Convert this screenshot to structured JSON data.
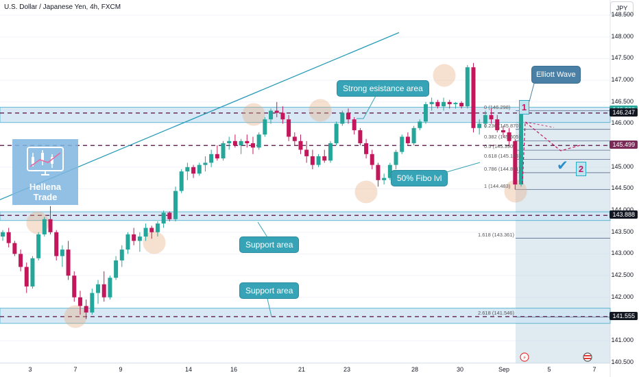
{
  "header": {
    "symbol": "U.S. Dollar / Japanese Yen, 4h, FXCM",
    "currency": "JPY"
  },
  "branding": {
    "line1": "Hellena",
    "line2": "Trade"
  },
  "annotations": {
    "resistance": "Strong esistance area",
    "support1": "Support area",
    "support2": "Support area",
    "fibo50": "50% Fibo lvl",
    "elliott": "Elliott Wave",
    "wave1": "1",
    "wave2": "2"
  },
  "fib_levels": [
    {
      "label": "0 (146.298)",
      "value": 146.298
    },
    {
      "label": "0.236 (145.870)",
      "value": 145.87
    },
    {
      "label": "0.382 (145.605)",
      "value": 145.605
    },
    {
      "label": "0.5 (145.390)",
      "value": 145.39
    },
    {
      "label": "0.618 (145.176)",
      "value": 145.176
    },
    {
      "label": "0.786 (144.871)",
      "value": 144.871
    },
    {
      "label": "1 (144.483)",
      "value": 144.483
    },
    {
      "label": "1.618 (143.361)",
      "value": 143.361
    },
    {
      "label": "2.618 (141.546)",
      "value": 141.546
    }
  ],
  "price_labels": [
    {
      "text": "146.306",
      "value": 146.306,
      "color": "#26a69a"
    },
    {
      "text": "146.247",
      "value": 146.247,
      "color": "#131722"
    },
    {
      "text": "145.499",
      "value": 145.499,
      "color": "#7b2a57"
    },
    {
      "text": "143.888",
      "value": 143.888,
      "color": "#131722"
    },
    {
      "text": "141.555",
      "value": 141.555,
      "color": "#131722"
    }
  ],
  "colors": {
    "up": "#26a69a",
    "down": "#c2185b",
    "zone": "#3ea9c9",
    "dashed": "#6a2c5a",
    "circle": "#e8a87c"
  },
  "chart_data": {
    "type": "candlestick",
    "title": "U.S. Dollar / Japanese Yen, 4h, FXCM",
    "y_ticks": [
      140.5,
      141.0,
      141.5,
      142.0,
      142.5,
      143.0,
      143.5,
      144.0,
      144.5,
      145.0,
      145.5,
      146.0,
      146.5,
      147.0,
      147.5,
      148.0,
      148.5
    ],
    "ylim": [
      140.48,
      148.85
    ],
    "x_ticks": [
      "3",
      "7",
      "9",
      "14",
      "16",
      "21",
      "23",
      "28",
      "30",
      "Sep",
      "5",
      "7"
    ],
    "zones": [
      {
        "name": "resistance",
        "low": 146.03,
        "high": 146.38
      },
      {
        "name": "support-1",
        "low": 143.77,
        "high": 143.97
      },
      {
        "name": "support-2",
        "low": 141.4,
        "high": 141.75
      }
    ],
    "dashed_levels": [
      146.247,
      145.499,
      143.888,
      141.555
    ],
    "trendline": {
      "from": [
        0,
        144.25
      ],
      "to": [
        107,
        148.1
      ]
    },
    "candles": [
      [
        143.4,
        143.55,
        143.3,
        143.5
      ],
      [
        143.5,
        143.6,
        143.15,
        143.25
      ],
      [
        143.25,
        143.3,
        142.95,
        143.0
      ],
      [
        143.0,
        143.1,
        142.6,
        142.7
      ],
      [
        142.7,
        142.8,
        142.1,
        142.25
      ],
      [
        142.25,
        142.95,
        142.2,
        142.9
      ],
      [
        142.9,
        143.5,
        142.85,
        143.45
      ],
      [
        143.45,
        143.85,
        143.4,
        143.8
      ],
      [
        143.8,
        144.1,
        143.45,
        143.5
      ],
      [
        143.5,
        143.55,
        142.85,
        142.95
      ],
      [
        142.95,
        143.2,
        142.7,
        143.1
      ],
      [
        143.1,
        143.3,
        142.4,
        142.5
      ],
      [
        142.5,
        142.6,
        141.9,
        142.0
      ],
      [
        142.0,
        142.15,
        141.6,
        141.8
      ],
      [
        141.8,
        141.95,
        141.5,
        141.65
      ],
      [
        141.65,
        142.2,
        141.6,
        142.1
      ],
      [
        142.1,
        142.4,
        141.85,
        142.3
      ],
      [
        142.3,
        142.6,
        141.9,
        142.0
      ],
      [
        142.0,
        142.5,
        141.95,
        142.45
      ],
      [
        142.45,
        142.95,
        142.4,
        142.85
      ],
      [
        142.85,
        143.2,
        142.7,
        143.1
      ],
      [
        143.1,
        143.5,
        143.0,
        143.45
      ],
      [
        143.45,
        143.6,
        143.2,
        143.3
      ],
      [
        143.3,
        143.5,
        143.05,
        143.4
      ],
      [
        143.4,
        143.7,
        143.3,
        143.6
      ],
      [
        143.6,
        143.65,
        143.35,
        143.5
      ],
      [
        143.5,
        143.75,
        143.4,
        143.7
      ],
      [
        143.7,
        144.0,
        143.6,
        143.95
      ],
      [
        143.95,
        143.98,
        143.75,
        143.8
      ],
      [
        143.8,
        144.55,
        143.75,
        144.45
      ],
      [
        144.45,
        144.95,
        144.4,
        144.9
      ],
      [
        144.9,
        145.1,
        144.7,
        145.0
      ],
      [
        145.0,
        145.05,
        144.75,
        144.85
      ],
      [
        144.85,
        145.1,
        144.8,
        145.05
      ],
      [
        145.05,
        145.25,
        144.9,
        145.1
      ],
      [
        145.1,
        145.4,
        145.0,
        145.3
      ],
      [
        145.3,
        145.5,
        145.15,
        145.2
      ],
      [
        145.2,
        145.6,
        145.15,
        145.55
      ],
      [
        145.55,
        145.7,
        145.4,
        145.6
      ],
      [
        145.6,
        145.75,
        145.45,
        145.5
      ],
      [
        145.5,
        145.65,
        145.3,
        145.6
      ],
      [
        145.6,
        145.75,
        145.45,
        145.55
      ],
      [
        145.55,
        145.7,
        145.3,
        145.45
      ],
      [
        145.45,
        145.8,
        145.4,
        145.75
      ],
      [
        145.75,
        146.15,
        145.7,
        146.1
      ],
      [
        146.1,
        146.35,
        146.0,
        146.3
      ],
      [
        146.3,
        146.5,
        146.15,
        146.25
      ],
      [
        146.25,
        146.4,
        146.0,
        146.1
      ],
      [
        146.1,
        146.2,
        145.6,
        145.7
      ],
      [
        145.7,
        145.8,
        145.5,
        145.6
      ],
      [
        145.6,
        145.75,
        145.3,
        145.4
      ],
      [
        145.4,
        145.6,
        145.1,
        145.25
      ],
      [
        145.25,
        145.4,
        144.95,
        145.05
      ],
      [
        145.05,
        145.3,
        145.0,
        145.25
      ],
      [
        145.25,
        145.4,
        145.1,
        145.15
      ],
      [
        145.15,
        145.6,
        145.1,
        145.55
      ],
      [
        145.55,
        146.05,
        145.5,
        146.0
      ],
      [
        146.0,
        146.3,
        145.95,
        146.25
      ],
      [
        146.25,
        146.35,
        146.0,
        146.1
      ],
      [
        146.1,
        146.15,
        145.75,
        145.85
      ],
      [
        145.85,
        145.9,
        145.5,
        145.55
      ],
      [
        145.55,
        145.65,
        145.2,
        145.3
      ],
      [
        145.3,
        145.4,
        144.95,
        145.05
      ],
      [
        145.05,
        145.1,
        144.55,
        144.7
      ],
      [
        144.7,
        144.85,
        144.6,
        144.75
      ],
      [
        144.75,
        145.1,
        144.7,
        145.05
      ],
      [
        145.05,
        145.4,
        144.95,
        145.35
      ],
      [
        145.35,
        145.75,
        145.3,
        145.7
      ],
      [
        145.7,
        145.8,
        145.5,
        145.55
      ],
      [
        145.55,
        145.95,
        145.5,
        145.9
      ],
      [
        145.9,
        146.1,
        145.85,
        146.05
      ],
      [
        146.05,
        146.5,
        146.0,
        146.45
      ],
      [
        146.45,
        146.6,
        146.3,
        146.5
      ],
      [
        146.5,
        146.55,
        146.35,
        146.4
      ],
      [
        146.4,
        146.6,
        146.3,
        146.5
      ],
      [
        146.5,
        146.55,
        146.35,
        146.45
      ],
      [
        146.45,
        146.5,
        146.35,
        146.48
      ],
      [
        146.48,
        146.52,
        146.35,
        146.4
      ],
      [
        146.4,
        147.35,
        146.35,
        147.3
      ],
      [
        147.3,
        147.4,
        145.8,
        145.9
      ],
      [
        145.9,
        146.1,
        145.75,
        146.0
      ],
      [
        146.0,
        146.3,
        145.9,
        146.2
      ],
      [
        146.2,
        146.35,
        146.0,
        146.1
      ],
      [
        146.1,
        146.2,
        145.8,
        145.85
      ],
      [
        145.85,
        145.95,
        145.7,
        145.8
      ],
      [
        145.8,
        145.9,
        145.5,
        145.6
      ],
      [
        145.6,
        145.65,
        144.48,
        144.6
      ],
      [
        144.6,
        146.3,
        144.55,
        146.25
      ]
    ]
  }
}
